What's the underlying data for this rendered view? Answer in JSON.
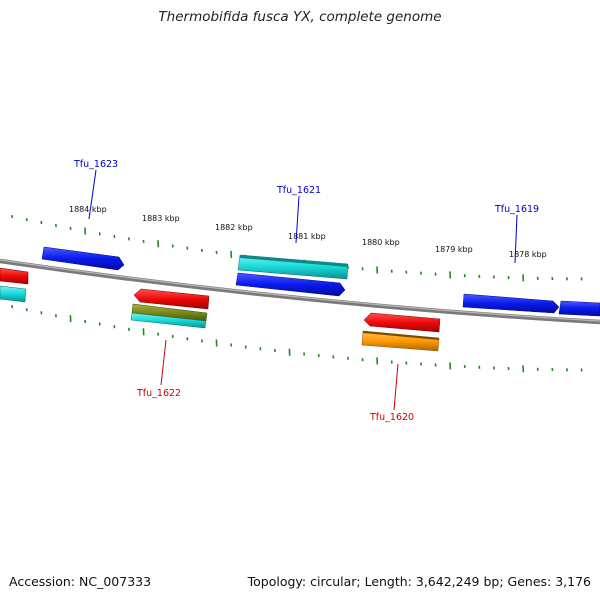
{
  "title": "Thermobifida fusca YX, complete genome",
  "accession": "Accession: NC_007333",
  "summary": "Topology: circular; Length: 3,642,249 bp; Genes: 3,176",
  "colors": {
    "backbone": "#8c8c8c",
    "tick": "#1f8a1f",
    "forward_label": "#0000cc",
    "reverse_label": "#cc0000",
    "cds_blue": "#0a1aee",
    "cds_red": "#ee0a0a",
    "cds_cyan": "#18d8d8",
    "cds_olive": "#7a8a1a",
    "cds_orange": "#ff9a00"
  },
  "scale_labels": [
    "1884 kbp",
    "1883 kbp",
    "1882 kbp",
    "1881 kbp",
    "1880 kbp",
    "1879 kbp",
    "1878 kbp"
  ],
  "gene_labels": {
    "forward": [
      "Tfu_1623",
      "Tfu_1621",
      "Tfu_1619"
    ],
    "reverse": [
      "Tfu_1622",
      "Tfu_1620"
    ]
  }
}
